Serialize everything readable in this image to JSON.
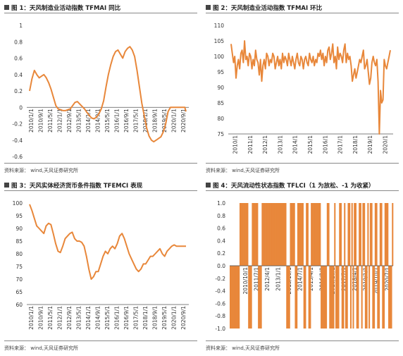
{
  "colors": {
    "series": "#E8873A",
    "axis": "#555555",
    "text": "#333333"
  },
  "panels": [
    {
      "title": "图 1：天风制造业活动指数 TFMAI 同比",
      "source": "资料来源： wind,天风证券研究所"
    },
    {
      "title": "图 2：天风制造业活动指数 TFMAI 环比",
      "source": "资料来源： wind,天风证券研究所"
    },
    {
      "title": "图 3：天风实体经济货币条件指数 TFEMCI 表现",
      "source": "资料来源： wind,天风证券研究所"
    },
    {
      "title": "图 4：天风流动性状态指数 TFLCI（1 为放松、-1 为收紧）",
      "source": "资料来源： wind,天风证券研究所"
    }
  ],
  "chart_data": [
    {
      "type": "line",
      "ylim": [
        -0.6,
        1.0
      ],
      "yticks": [
        -0.6,
        -0.4,
        -0.2,
        0,
        0.2,
        0.4,
        0.6,
        0.8,
        1
      ],
      "xticks": [
        "2010/1/1",
        "2010/9/1",
        "2011/5/1",
        "2012/1/1",
        "2012/9/1",
        "2013/5/1",
        "2014/1/1",
        "2014/9/1",
        "2015/5/1",
        "2016/1/1",
        "2016/9/1",
        "2017/5/1",
        "2018/1/1",
        "2018/9/1",
        "2019/5/1",
        "2020/1/1",
        "2020/9/1"
      ],
      "x": [
        0,
        2,
        4,
        6,
        8,
        10,
        12,
        14,
        16,
        18,
        20,
        22,
        24,
        26,
        28,
        30,
        32,
        34,
        36,
        38,
        40,
        42,
        44,
        46,
        48,
        50,
        52,
        54,
        56,
        58,
        60,
        62,
        64,
        66,
        68,
        70,
        72,
        74,
        76,
        78,
        80,
        82,
        84,
        86,
        88,
        90,
        92,
        94,
        96,
        98,
        100,
        102,
        104,
        106,
        108,
        110,
        112,
        114,
        116,
        118,
        120,
        122,
        124,
        126,
        128,
        130,
        131
      ],
      "values": [
        0.2,
        0.35,
        0.45,
        0.4,
        0.36,
        0.38,
        0.4,
        0.36,
        0.3,
        0.22,
        0.12,
        0.02,
        -0.02,
        -0.03,
        -0.04,
        -0.04,
        -0.03,
        -0.02,
        0.02,
        0.06,
        0.07,
        0.04,
        0.01,
        -0.02,
        -0.06,
        -0.1,
        -0.13,
        -0.14,
        -0.12,
        -0.08,
        -0.02,
        0.08,
        0.25,
        0.4,
        0.52,
        0.62,
        0.68,
        0.7,
        0.65,
        0.6,
        0.68,
        0.72,
        0.74,
        0.7,
        0.62,
        0.45,
        0.25,
        0.05,
        -0.1,
        -0.25,
        -0.35,
        -0.4,
        -0.42,
        -0.4,
        -0.38,
        -0.36,
        -0.3,
        -0.2,
        -0.05,
        0.0,
        0.0,
        0.0,
        0.0,
        0.0,
        0.0,
        0.0,
        -0.05
      ]
    },
    {
      "type": "line",
      "ylim": [
        75,
        110
      ],
      "yticks": [
        75,
        80,
        85,
        90,
        95,
        100,
        105,
        110
      ],
      "xticks": [
        "2010/1",
        "2011/1",
        "2012/1",
        "2013/1",
        "2014/1",
        "2015/1",
        "2016/1",
        "2017/1",
        "2018/1",
        "2019/1",
        "2020/1"
      ],
      "x": [
        0,
        1,
        2,
        3,
        4,
        5,
        6,
        7,
        8,
        9,
        10,
        11,
        12,
        13,
        14,
        15,
        16,
        17,
        18,
        19,
        20,
        21,
        22,
        23,
        24,
        25,
        26,
        27,
        28,
        29,
        30,
        31,
        32,
        33,
        34,
        35,
        36,
        37,
        38,
        39,
        40,
        41,
        42,
        43,
        44,
        45,
        46,
        47,
        48,
        49,
        50,
        51,
        52,
        53,
        54,
        55,
        56,
        57,
        58,
        59,
        60,
        61,
        62,
        63,
        64,
        65,
        66,
        67,
        68,
        69,
        70,
        71,
        72,
        73,
        74,
        75,
        76,
        77,
        78,
        79,
        80,
        81,
        82,
        83,
        84,
        85,
        86,
        87,
        88,
        89,
        90,
        91,
        92,
        93,
        94,
        95,
        96,
        97,
        98,
        99,
        100,
        101,
        102,
        103,
        104,
        105,
        106,
        107,
        108,
        109,
        110,
        111,
        112,
        113,
        114,
        115,
        116,
        117,
        118,
        119,
        120,
        121,
        122,
        123,
        124,
        125,
        126,
        127,
        128,
        129,
        130
      ],
      "values": [
        104,
        101,
        98,
        100,
        93,
        97,
        99,
        96,
        101,
        102,
        98,
        105,
        99,
        100,
        97,
        101,
        100,
        96,
        99,
        97,
        102,
        99,
        98,
        94,
        99,
        92,
        97,
        99,
        96,
        101,
        100,
        97,
        99,
        98,
        101,
        100,
        96,
        98,
        100,
        97,
        99,
        96,
        101,
        98,
        100,
        99,
        97,
        101,
        99,
        97,
        100,
        98,
        96,
        99,
        101,
        98,
        97,
        100,
        99,
        96,
        99,
        100,
        98,
        97,
        101,
        99,
        98,
        100,
        97,
        99,
        98,
        101,
        100,
        102,
        99,
        101,
        97,
        100,
        98,
        102,
        103,
        99,
        101,
        104,
        98,
        100,
        96,
        103,
        99,
        101,
        100,
        98,
        102,
        104,
        98,
        101,
        99,
        100,
        97,
        92,
        94,
        96,
        93,
        95,
        97,
        99,
        98,
        100,
        102,
        96,
        97,
        99,
        95,
        91,
        93,
        98,
        100,
        98,
        97,
        99,
        92,
        75,
        89,
        85,
        86,
        99,
        97,
        96,
        98,
        100,
        102
      ]
    },
    {
      "type": "line",
      "ylim": [
        60,
        100
      ],
      "yticks": [
        60,
        65,
        70,
        75,
        80,
        85,
        90,
        95,
        100
      ],
      "xticks": [
        "2010/1/1",
        "2010/9/1",
        "2011/5/1",
        "2012/1/1",
        "2012/9/1",
        "2013/5/1",
        "2014/1/1",
        "2014/9/1",
        "2015/5/1",
        "2016/1/1",
        "2016/9/1",
        "2017/5/1",
        "2018/1/1",
        "2018/9/1",
        "2019/5/1",
        "2020/1/1",
        "2020/9/1"
      ],
      "x": [
        0,
        2,
        4,
        6,
        8,
        10,
        12,
        14,
        16,
        18,
        20,
        22,
        24,
        26,
        28,
        30,
        32,
        34,
        36,
        38,
        40,
        42,
        44,
        46,
        48,
        50,
        52,
        54,
        56,
        58,
        60,
        62,
        64,
        66,
        68,
        70,
        72,
        74,
        76,
        78,
        80,
        82,
        84,
        86,
        88,
        90,
        92,
        94,
        96,
        98,
        100,
        102,
        104,
        106,
        108,
        110,
        112,
        114,
        116,
        118,
        120,
        122,
        124,
        126,
        128,
        130,
        132
      ],
      "values": [
        99.5,
        97,
        94,
        91,
        90,
        89,
        88,
        91,
        92,
        91.5,
        88,
        84,
        81,
        80.5,
        83,
        86,
        87,
        88,
        88.5,
        86,
        85,
        85,
        84.5,
        83,
        79,
        74,
        70,
        71,
        73,
        73,
        76,
        79,
        81,
        80,
        82,
        83,
        82,
        84,
        87,
        88,
        86,
        83,
        80,
        78,
        76,
        74,
        73,
        74,
        76,
        76,
        77.5,
        79,
        79,
        80,
        81,
        82,
        80,
        79,
        81,
        82,
        83,
        83.5,
        83,
        83,
        83,
        83,
        83
      ]
    },
    {
      "type": "bar",
      "ylim": [
        -1.0,
        1.0
      ],
      "yticks": [
        -1.0,
        -0.8,
        -0.6,
        -0.4,
        -0.2,
        0.0,
        0.2,
        0.4,
        0.6,
        0.8,
        1.0
      ],
      "xticks": [
        "2010/1/1",
        "2010/10/1",
        "2011/7/1",
        "2012/4/1",
        "2013/1/1",
        "2013/10/1",
        "2014/7/1",
        "2015/4/1",
        "2016/1/1",
        "2016/10/1",
        "2017/7/1",
        "2018/4/1",
        "2019/1/1",
        "2019/10/1",
        "2020/7/1"
      ],
      "values": [
        -1,
        -1,
        -1,
        -1,
        -1,
        -1,
        -1,
        -1,
        1,
        1,
        1,
        1,
        1,
        1,
        1,
        -1,
        -1,
        -1,
        1,
        1,
        1,
        1,
        1,
        -1,
        -1,
        -1,
        1,
        1,
        1,
        1,
        1,
        1,
        1,
        1,
        1,
        1,
        1,
        1,
        1,
        1,
        1,
        1,
        1,
        1,
        1,
        1,
        -1,
        -1,
        -1,
        1,
        1,
        1,
        1,
        -1,
        -1,
        1,
        1,
        1,
        1,
        1,
        -1,
        -1,
        1,
        1,
        -1,
        -1,
        1,
        1,
        1,
        1,
        1,
        1,
        1,
        1,
        -1,
        -1,
        -1,
        -1,
        -1,
        1,
        1,
        -1,
        -1,
        -1,
        -1,
        1,
        -1,
        -1,
        -1,
        1,
        1,
        -1,
        -1,
        1,
        -1,
        -1,
        1,
        1,
        -1,
        1,
        -1,
        1,
        1,
        -1,
        -1,
        1,
        1,
        -1,
        1,
        1,
        -1,
        -1,
        1,
        -1,
        1,
        1,
        -1,
        -1,
        1,
        1,
        -1,
        -1,
        1,
        1,
        -1,
        -1,
        1,
        1,
        1,
        -1,
        -1,
        -1,
        1
      ]
    }
  ]
}
